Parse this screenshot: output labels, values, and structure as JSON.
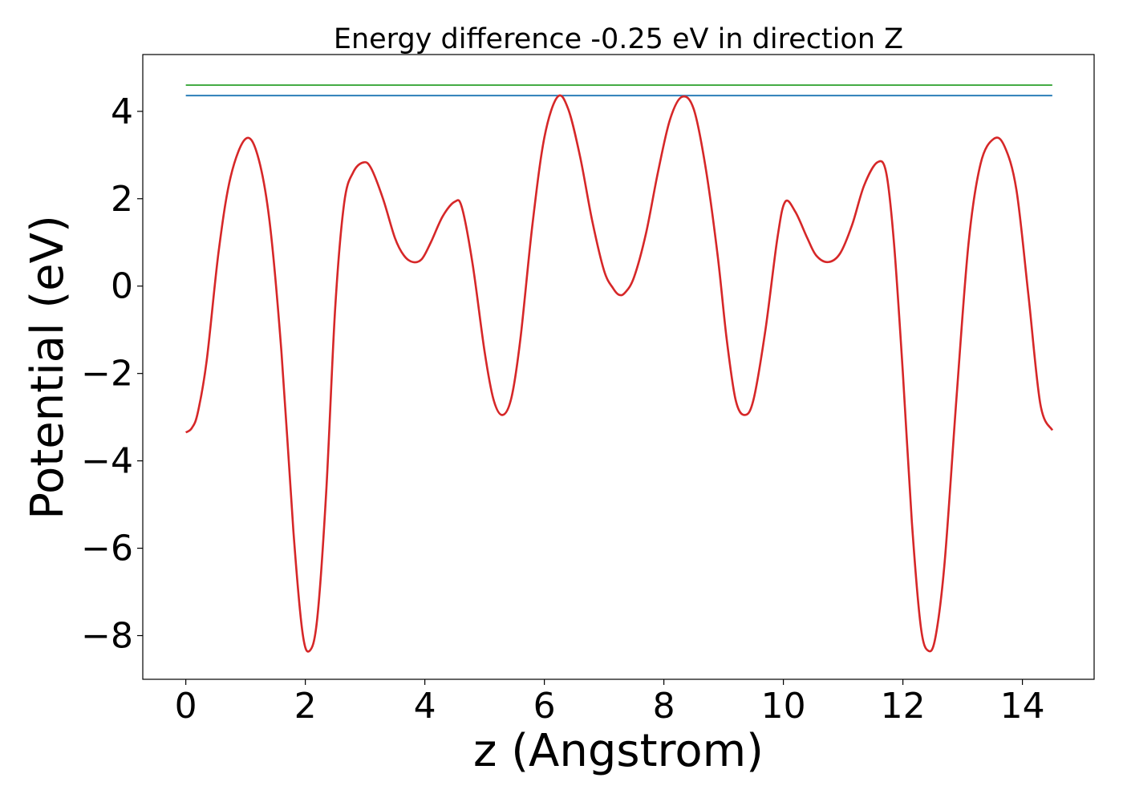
{
  "chart_data": {
    "type": "line",
    "title": "Energy difference -0.25 eV in direction Z",
    "xlabel": "z (Angstrom)",
    "ylabel": "Potential (eV)",
    "xlim": [
      -0.72,
      15.2
    ],
    "ylim": [
      -9.0,
      5.3
    ],
    "grid": false,
    "x_ticks": [
      0,
      2,
      4,
      6,
      8,
      10,
      12,
      14
    ],
    "y_ticks": [
      -8,
      -6,
      -4,
      -2,
      0,
      2,
      4
    ],
    "x_tick_labels": [
      "0",
      "2",
      "4",
      "6",
      "8",
      "10",
      "12",
      "14"
    ],
    "y_tick_labels": [
      "−8",
      "−6",
      "−4",
      "−2",
      "0",
      "2",
      "4"
    ],
    "series": [
      {
        "color": "#2ca02c",
        "x": [
          0,
          14.5
        ],
        "y": [
          4.6,
          4.6
        ]
      },
      {
        "color": "#1f77b4",
        "x": [
          0,
          14.5
        ],
        "y": [
          4.36,
          4.36
        ]
      },
      {
        "color": "#d62728",
        "x": [
          0,
          0.1,
          0.2,
          0.35,
          0.55,
          0.75,
          1.0,
          1.2,
          1.4,
          1.6,
          1.8,
          1.95,
          2.07,
          2.2,
          2.35,
          2.5,
          2.65,
          2.8,
          2.97,
          3.1,
          3.3,
          3.5,
          3.65,
          3.8,
          3.95,
          4.1,
          4.3,
          4.5,
          4.62,
          4.8,
          5.0,
          5.15,
          5.3,
          5.45,
          5.6,
          5.8,
          6.0,
          6.22,
          6.4,
          6.6,
          6.8,
          7.0,
          7.15,
          7.25,
          7.35,
          7.5,
          7.7,
          7.9,
          8.1,
          8.3,
          8.5,
          8.7,
          8.9,
          9.05,
          9.2,
          9.35,
          9.5,
          9.7,
          9.9,
          10.03,
          10.2,
          10.4,
          10.55,
          10.75,
          10.95,
          11.15,
          11.35,
          11.57,
          11.72,
          11.85,
          12.0,
          12.15,
          12.3,
          12.43,
          12.55,
          12.7,
          12.9,
          13.1,
          13.3,
          13.52,
          13.7,
          13.9,
          14.1,
          14.3,
          14.5
        ],
        "y": [
          -3.35,
          -3.25,
          -2.9,
          -1.7,
          0.8,
          2.5,
          3.37,
          3.0,
          1.5,
          -1.5,
          -5.6,
          -7.9,
          -8.35,
          -7.6,
          -4.7,
          -0.5,
          1.9,
          2.6,
          2.83,
          2.7,
          2.0,
          1.1,
          0.7,
          0.55,
          0.62,
          1.0,
          1.6,
          1.93,
          1.8,
          0.5,
          -1.5,
          -2.6,
          -2.95,
          -2.55,
          -1.2,
          1.4,
          3.4,
          4.33,
          4.05,
          2.95,
          1.5,
          0.35,
          -0.05,
          -0.2,
          -0.15,
          0.2,
          1.2,
          2.6,
          3.8,
          4.33,
          4.05,
          2.7,
          0.7,
          -1.2,
          -2.6,
          -2.95,
          -2.6,
          -1.0,
          1.1,
          1.93,
          1.7,
          1.1,
          0.7,
          0.55,
          0.75,
          1.4,
          2.3,
          2.83,
          2.6,
          1.0,
          -2.0,
          -5.4,
          -7.8,
          -8.35,
          -8.0,
          -6.3,
          -2.5,
          1.0,
          2.8,
          3.37,
          3.2,
          2.2,
          -0.2,
          -2.7,
          -3.3
        ]
      }
    ]
  }
}
